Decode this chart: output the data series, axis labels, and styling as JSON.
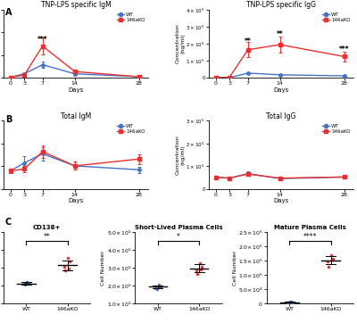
{
  "panel_A_left_title": "TNP-LPS specific IgM",
  "panel_A_right_title": "TNP-LPS specific IgG",
  "panel_B_left_title": "Total IgM",
  "panel_B_right_title": "Total IgG",
  "days": [
    0,
    3,
    7,
    14,
    28
  ],
  "A_IgM_WT_mean": [
    3000,
    18000,
    58000,
    18000,
    5000
  ],
  "A_IgM_WT_err": [
    1000,
    4000,
    12000,
    4000,
    1000
  ],
  "A_IgM_KO_mean": [
    3000,
    12000,
    140000,
    28000,
    5000
  ],
  "A_IgM_KO_err": [
    1000,
    4000,
    38000,
    7000,
    1000
  ],
  "A_IgG_WT_mean": [
    500,
    1500,
    28000,
    18000,
    12000
  ],
  "A_IgG_WT_err": [
    200,
    800,
    7000,
    7000,
    4000
  ],
  "A_IgG_KO_mean": [
    500,
    4000,
    165000,
    195000,
    125000
  ],
  "A_IgG_KO_err": [
    200,
    1500,
    45000,
    48000,
    28000
  ],
  "B_IgM_WT_mean": [
    80000,
    115000,
    155000,
    102000,
    85000
  ],
  "B_IgM_WT_err": [
    10000,
    28000,
    28000,
    18000,
    14000
  ],
  "B_IgM_KO_mean": [
    80000,
    88000,
    165000,
    102000,
    132000
  ],
  "B_IgM_KO_err": [
    10000,
    14000,
    28000,
    18000,
    22000
  ],
  "B_IgG_WT_mean": [
    52000,
    48000,
    68000,
    46000,
    53000
  ],
  "B_IgG_WT_err": [
    5000,
    7000,
    10000,
    7000,
    7000
  ],
  "B_IgG_KO_mean": [
    52000,
    48000,
    66000,
    48000,
    53000
  ],
  "B_IgG_KO_err": [
    5000,
    7000,
    9000,
    7000,
    7000
  ],
  "wt_color": "#4472C4",
  "ko_color": "#E83030",
  "ylabel_conc": "Concentration\n(ng/ml)",
  "xlabel": "Days",
  "panel_C_titles": [
    "CD138+",
    "Short-Lived Plasma Cells",
    "Mature Plasma Cells"
  ],
  "CD138_WT_points": [
    21000,
    22500,
    23500,
    24500,
    22000
  ],
  "CD138_WT_mean": 22700,
  "CD138_WT_err": 1200,
  "CD138_KO_points": [
    37000,
    41000,
    47000,
    51000,
    39000
  ],
  "CD138_KO_mean": 43000,
  "CD138_KO_err": 5500,
  "SLPC_WT_points": [
    183000,
    193000,
    198000,
    208000,
    188000
  ],
  "SLPC_WT_mean": 194000,
  "SLPC_WT_err": 9000,
  "SLPC_KO_points": [
    268000,
    288000,
    308000,
    328000,
    293000
  ],
  "SLPC_KO_mean": 297000,
  "SLPC_KO_err": 23000,
  "MPC_WT_points": [
    5200,
    5500,
    5700,
    5900,
    5400
  ],
  "MPC_WT_mean": 5540,
  "MPC_WT_err": 280,
  "MPC_KO_points": [
    128000,
    148000,
    158000,
    168000,
    153000
  ],
  "MPC_KO_mean": 151000,
  "MPC_KO_err": 14000,
  "sig_A_IgM_label": "***",
  "sig_A_IgM_day": 7,
  "sig_A_IgG_labels": [
    "**",
    "**",
    "***"
  ],
  "sig_A_IgG_days": [
    7,
    14,
    28
  ],
  "sig_CD138": "**",
  "sig_SLPC": "*",
  "sig_MPC": "****"
}
